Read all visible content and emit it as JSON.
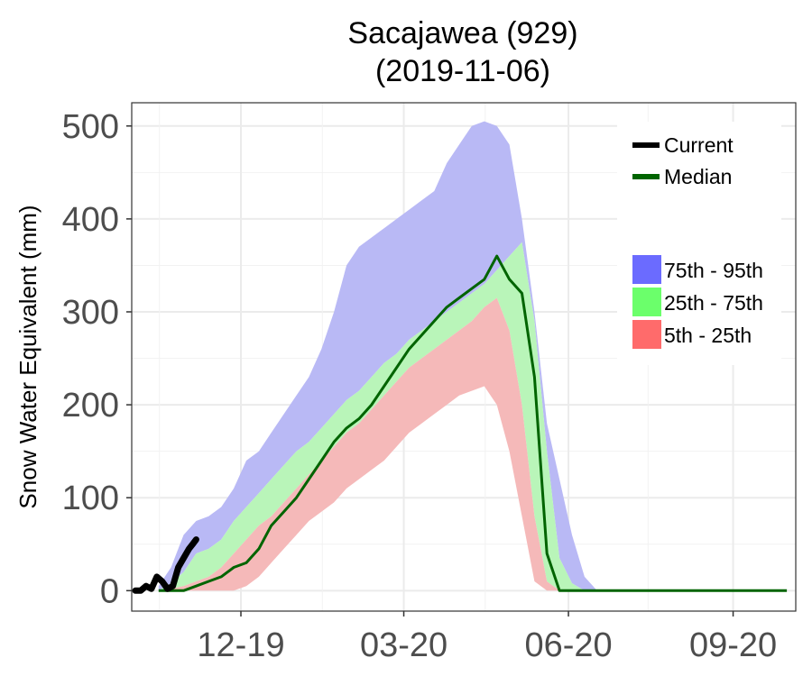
{
  "chart_data": {
    "type": "area",
    "title": [
      "Sacajawea (929)",
      "(2019-11-06)"
    ],
    "ylabel": "Snow Water Equivalent (mm)",
    "xlabel": "",
    "ylim": [
      -22,
      525
    ],
    "xlim": [
      "2019-10-01",
      "2020-10-06"
    ],
    "grid": true,
    "legend_position": "top-right",
    "yticks": [
      0,
      100,
      200,
      300,
      400,
      500
    ],
    "yticks_text": [
      "0",
      "100",
      "200",
      "300",
      "400",
      "500"
    ],
    "xticks": [
      "2019-12-01",
      "2020-03-01",
      "2020-06-01",
      "2020-09-01"
    ],
    "xticks_text": [
      "12-19",
      "03-20",
      "06-20",
      "09-20"
    ],
    "x": [
      "2019-10-16",
      "2019-10-23",
      "2019-10-30",
      "2019-11-06",
      "2019-11-13",
      "2019-11-20",
      "2019-11-27",
      "2019-12-04",
      "2019-12-11",
      "2019-12-18",
      "2019-12-25",
      "2020-01-01",
      "2020-01-08",
      "2020-01-15",
      "2020-01-22",
      "2020-01-29",
      "2020-02-05",
      "2020-02-12",
      "2020-02-19",
      "2020-02-26",
      "2020-03-04",
      "2020-03-11",
      "2020-03-18",
      "2020-03-25",
      "2020-04-01",
      "2020-04-08",
      "2020-04-15",
      "2020-04-22",
      "2020-04-29",
      "2020-05-06",
      "2020-05-13",
      "2020-05-20",
      "2020-05-27",
      "2020-06-03",
      "2020-06-10",
      "2020-06-17",
      "2020-06-24",
      "2020-07-01",
      "2020-07-15",
      "2020-08-01",
      "2020-09-01",
      "2020-09-15",
      "2020-10-01"
    ],
    "bands": [
      {
        "name": "75th - 95th",
        "color": "#0000ff",
        "fill": "#b9b9f5",
        "lower": [
          0,
          8,
          20,
          40,
          45,
          55,
          75,
          90,
          105,
          120,
          135,
          150,
          160,
          175,
          190,
          205,
          215,
          230,
          245,
          255,
          270,
          280,
          290,
          300,
          310,
          320,
          330,
          345,
          360,
          375,
          290,
          150,
          35,
          8,
          0,
          0,
          0,
          0,
          0,
          0,
          0,
          0,
          0
        ],
        "upper": [
          5,
          25,
          60,
          75,
          80,
          90,
          110,
          140,
          150,
          170,
          190,
          210,
          230,
          260,
          300,
          350,
          370,
          380,
          390,
          400,
          410,
          420,
          430,
          460,
          480,
          500,
          505,
          500,
          480,
          400,
          300,
          180,
          120,
          60,
          15,
          0,
          0,
          0,
          0,
          0,
          0,
          0,
          0
        ]
      },
      {
        "name": "25th - 75th",
        "color": "#00ff00",
        "fill": "#b9f5b9",
        "lower": [
          0,
          2,
          5,
          10,
          15,
          25,
          40,
          55,
          70,
          80,
          95,
          110,
          125,
          140,
          155,
          170,
          180,
          195,
          210,
          225,
          240,
          250,
          260,
          270,
          280,
          290,
          305,
          315,
          280,
          200,
          80,
          10,
          0,
          0,
          0,
          0,
          0,
          0,
          0,
          0,
          0,
          0,
          0
        ],
        "upper": [
          0,
          8,
          20,
          40,
          45,
          55,
          75,
          90,
          105,
          120,
          135,
          150,
          160,
          175,
          190,
          205,
          215,
          230,
          245,
          255,
          270,
          280,
          290,
          300,
          310,
          320,
          330,
          345,
          360,
          375,
          290,
          150,
          35,
          8,
          0,
          0,
          0,
          0,
          0,
          0,
          0,
          0,
          0
        ]
      },
      {
        "name": "5th - 25th",
        "color": "#ff0000",
        "fill": "#f5b9b9",
        "lower": [
          0,
          0,
          0,
          0,
          0,
          0,
          0,
          5,
          15,
          30,
          45,
          60,
          75,
          85,
          95,
          110,
          120,
          130,
          140,
          155,
          170,
          180,
          190,
          200,
          210,
          215,
          220,
          200,
          150,
          80,
          10,
          0,
          0,
          0,
          0,
          0,
          0,
          0,
          0,
          0,
          0,
          0,
          0
        ],
        "upper": [
          0,
          2,
          5,
          10,
          15,
          25,
          40,
          55,
          70,
          80,
          95,
          110,
          125,
          140,
          155,
          170,
          180,
          195,
          210,
          225,
          240,
          250,
          260,
          270,
          280,
          290,
          305,
          315,
          280,
          200,
          80,
          10,
          0,
          0,
          0,
          0,
          0,
          0,
          0,
          0,
          0,
          0,
          0
        ]
      }
    ],
    "series": [
      {
        "name": "Median",
        "color": "#006400",
        "values": [
          0,
          0,
          0,
          5,
          10,
          15,
          25,
          30,
          45,
          70,
          85,
          100,
          120,
          140,
          160,
          175,
          185,
          200,
          220,
          240,
          260,
          275,
          290,
          305,
          315,
          325,
          335,
          360,
          335,
          320,
          230,
          40,
          0,
          0,
          0,
          0,
          0,
          0,
          0,
          0,
          0,
          0,
          0
        ]
      },
      {
        "name": "Current",
        "color": "#000000",
        "x": [
          "2019-10-03",
          "2019-10-06",
          "2019-10-09",
          "2019-10-12",
          "2019-10-15",
          "2019-10-18",
          "2019-10-21",
          "2019-10-24",
          "2019-10-27",
          "2019-10-30",
          "2019-11-02",
          "2019-11-04",
          "2019-11-06"
        ],
        "values": [
          0,
          0,
          5,
          2,
          15,
          10,
          2,
          5,
          25,
          35,
          45,
          50,
          55
        ]
      }
    ]
  }
}
